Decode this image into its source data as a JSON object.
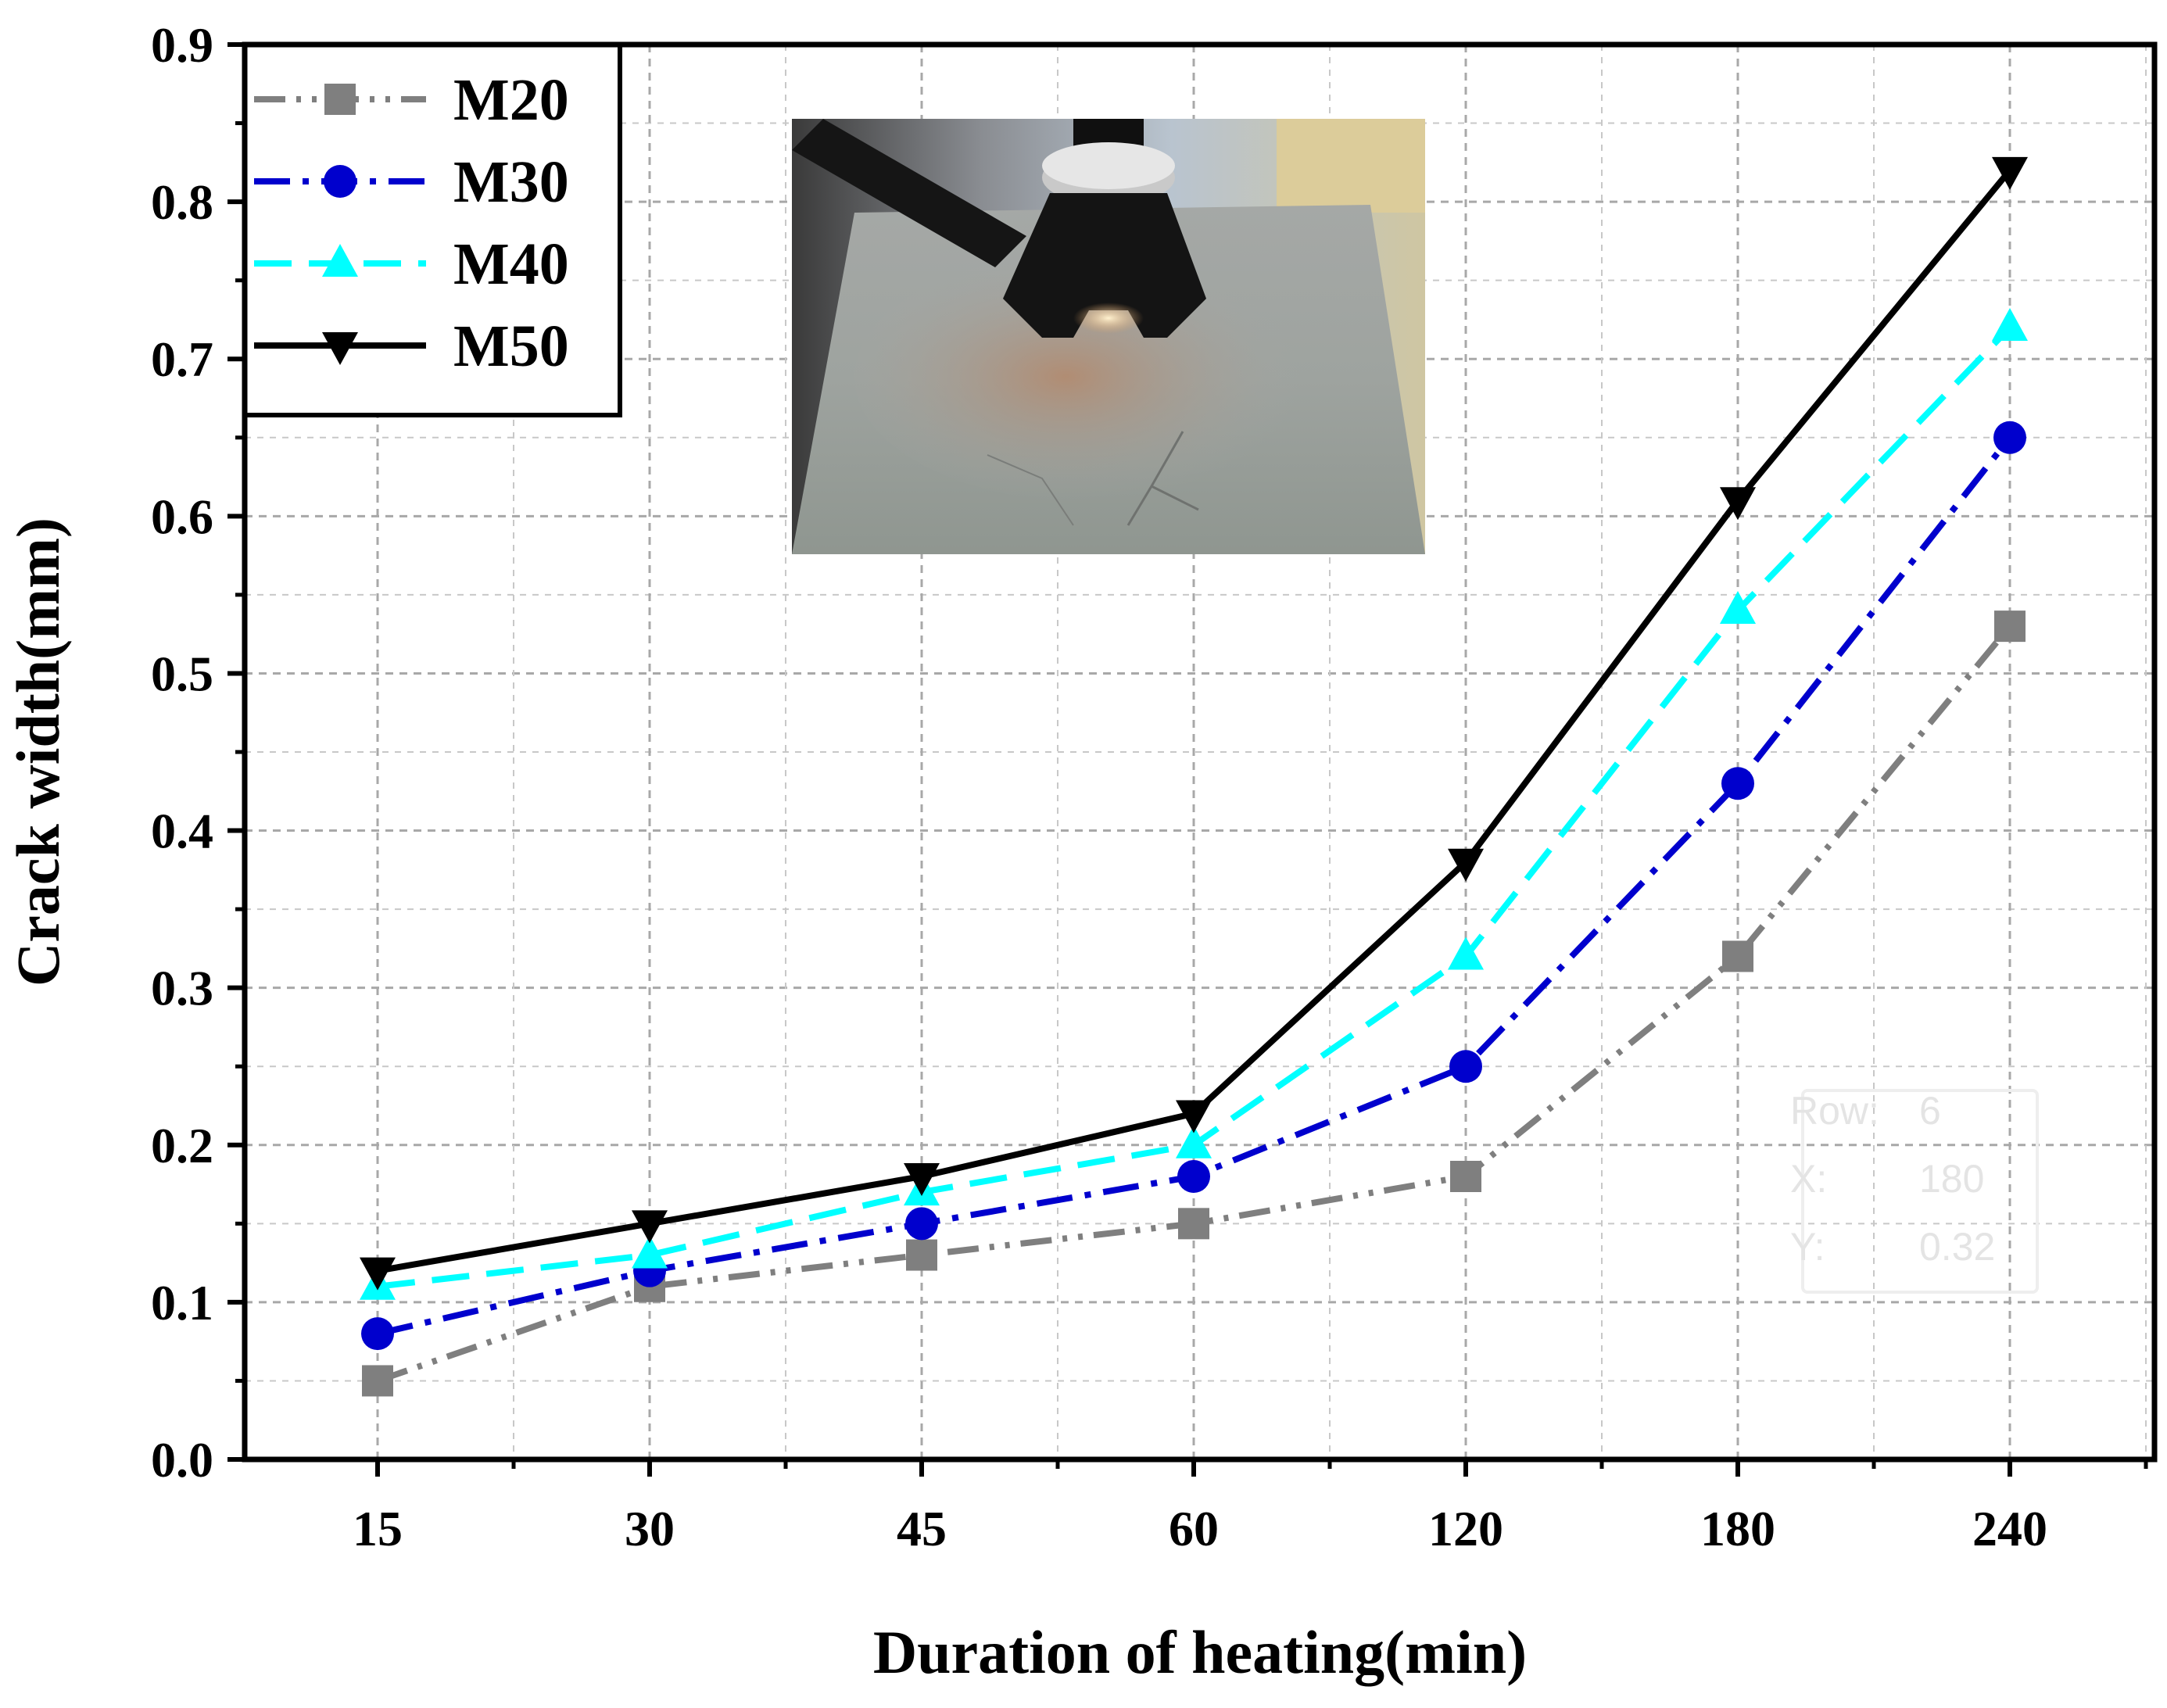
{
  "chart_data": {
    "type": "line",
    "title": "",
    "xlabel": "Duration of heating(min)",
    "ylabel": "Crack width(mm)",
    "categories": [
      "15",
      "30",
      "45",
      "60",
      "120",
      "180",
      "240"
    ],
    "ylim": [
      0.0,
      0.9
    ],
    "yticks": [
      "0.0",
      "0.1",
      "0.2",
      "0.3",
      "0.4",
      "0.5",
      "0.6",
      "0.7",
      "0.8",
      "0.9"
    ],
    "grid": true,
    "legend_position": "top-left",
    "series": [
      {
        "name": "M20",
        "values": [
          0.05,
          0.11,
          0.13,
          0.15,
          0.18,
          0.32,
          0.53
        ],
        "color": "#7f7f7f",
        "marker": "square",
        "line_style": "dash-dot-dot"
      },
      {
        "name": "M30",
        "values": [
          0.08,
          0.12,
          0.15,
          0.18,
          0.25,
          0.43,
          0.65
        ],
        "color": "#0000cd",
        "marker": "circle",
        "line_style": "dash-dot"
      },
      {
        "name": "M40",
        "values": [
          0.11,
          0.13,
          0.17,
          0.2,
          0.32,
          0.54,
          0.72
        ],
        "color": "#00ffff",
        "marker": "triangle-up",
        "line_style": "dash"
      },
      {
        "name": "M50",
        "values": [
          0.12,
          0.15,
          0.18,
          0.22,
          0.38,
          0.61,
          0.82
        ],
        "color": "#000000",
        "marker": "triangle-down",
        "line_style": "solid"
      }
    ],
    "inset_photo": "concrete slab with heating device",
    "tooltip": {
      "row_label": "Row:",
      "row_value": "6",
      "x_label": "X:",
      "x_value": "180",
      "y_label": "Y:",
      "y_value": "0.32"
    }
  }
}
